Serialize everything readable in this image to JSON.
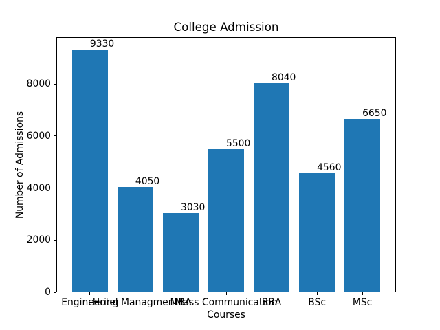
{
  "chart_data": {
    "type": "bar",
    "title": "College Admission",
    "xlabel": "Courses",
    "ylabel": "Number of Admissions",
    "categories": [
      "Engineering",
      "Hotel Managment",
      "MBA",
      "Mass Communication",
      "BBA",
      "BSc",
      "MSc"
    ],
    "values": [
      9330,
      4050,
      3030,
      5500,
      8040,
      4560,
      6650
    ],
    "bar_value_labels": [
      "9330",
      "4050",
      "3030",
      "5500",
      "8040",
      "4560",
      "6650"
    ],
    "yticks": [
      0,
      2000,
      4000,
      6000,
      8000
    ],
    "ylim": [
      0,
      9796.5
    ],
    "bar_width_fraction": 0.8,
    "bar_color": "#1f77b4",
    "grid": false,
    "legend": false
  }
}
